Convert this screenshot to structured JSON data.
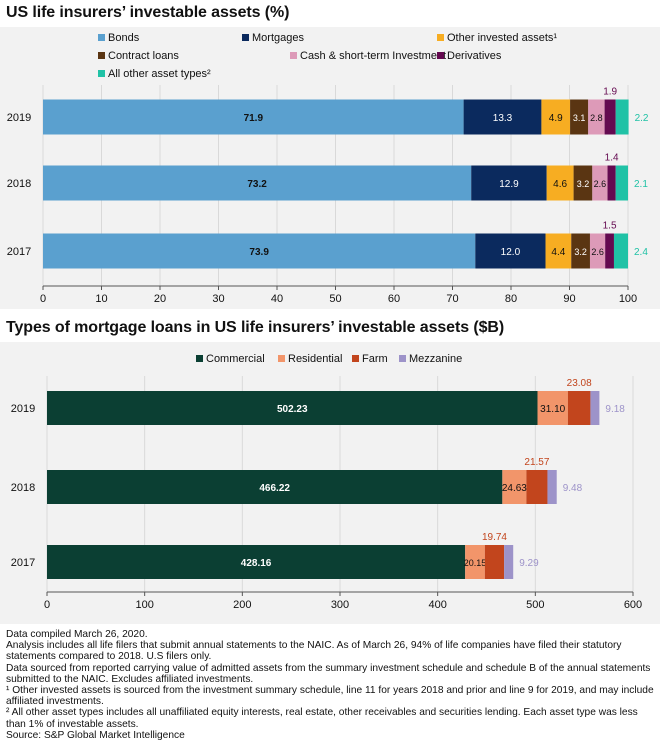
{
  "chart_data": [
    {
      "type": "bar",
      "orientation": "horizontal",
      "stacked": true,
      "title": "US life insurers’ investable assets (%)",
      "categories": [
        "2019",
        "2018",
        "2017"
      ],
      "series": [
        {
          "name": "Bonds",
          "legend": "Bonds",
          "color": "#5aa0cf",
          "values": [
            71.9,
            73.2,
            73.9
          ],
          "labels": [
            "71.9",
            "73.2",
            "73.9"
          ]
        },
        {
          "name": "Mortgages",
          "legend": "Mortgages",
          "color": "#0b2a5e",
          "values": [
            13.3,
            12.9,
            12.0
          ],
          "labels": [
            "13.3",
            "12.9",
            "12.0"
          ]
        },
        {
          "name": "Other invested assets",
          "legend": "Other invested assets¹",
          "color": "#f7ad22",
          "values": [
            4.9,
            4.6,
            4.4
          ],
          "labels": [
            "4.9",
            "4.6",
            "4.4"
          ]
        },
        {
          "name": "Contract loans",
          "legend": "Contract loans",
          "color": "#5a3512",
          "values": [
            3.1,
            3.2,
            3.2
          ],
          "labels": [
            "3.1",
            "3.2",
            "3.2"
          ]
        },
        {
          "name": "Cash & short-term Investment",
          "legend": "Cash & short-term Investment",
          "color": "#dd9ab8",
          "values": [
            2.8,
            2.6,
            2.6
          ],
          "labels": [
            "2.8",
            "2.6",
            "2.6"
          ]
        },
        {
          "name": "Derivatives",
          "legend": "Derivatives",
          "color": "#640a50",
          "values": [
            1.9,
            1.4,
            1.5
          ],
          "labels": [
            "1.9",
            "1.4",
            "1.5"
          ]
        },
        {
          "name": "All other asset types",
          "legend": "All other asset types²",
          "color": "#20c2a6",
          "values": [
            2.2,
            2.1,
            2.4
          ],
          "labels": [
            "2.2",
            "2.1",
            "2.4"
          ]
        }
      ],
      "xlim": [
        0,
        100
      ],
      "xticks": [
        "0",
        "10",
        "20",
        "30",
        "40",
        "50",
        "60",
        "70",
        "80",
        "90",
        "100"
      ]
    },
    {
      "type": "bar",
      "orientation": "horizontal",
      "stacked": true,
      "title": "Types of mortgage loans in US life insurers’ investable assets ($B)",
      "categories": [
        "2019",
        "2018",
        "2017"
      ],
      "series": [
        {
          "name": "Commercial",
          "legend": "Commercial",
          "color": "#0b3f33",
          "values": [
            502.23,
            466.22,
            428.16
          ],
          "labels": [
            "502.23",
            "466.22",
            "428.16"
          ]
        },
        {
          "name": "Residential",
          "legend": "Residential",
          "color": "#f2956a",
          "values": [
            31.1,
            24.63,
            20.15
          ],
          "labels": [
            "31.10",
            "24.63",
            "20.15"
          ]
        },
        {
          "name": "Farm",
          "legend": "Farm",
          "color": "#c2451d",
          "values": [
            23.08,
            21.57,
            19.74
          ],
          "labels": [
            "23.08",
            "21.57",
            "19.74"
          ]
        },
        {
          "name": "Mezzanine",
          "legend": "Mezzanine",
          "color": "#9d93c9",
          "values": [
            9.18,
            9.48,
            9.29
          ],
          "labels": [
            "9.18",
            "9.48",
            "9.29"
          ]
        }
      ],
      "xlim": [
        0,
        600
      ],
      "xticks": [
        "0",
        "100",
        "200",
        "300",
        "400",
        "500",
        "600"
      ]
    }
  ],
  "footnotes": [
    "Data compiled March 26, 2020.",
    "Analysis includes all life filers that submit annual statements to the NAIC. As of March 26, 94% of life companies have filed their statutory statements compared to 2018. U.S filers only.",
    "Data sourced from reported carrying value of admitted assets from the summary investment schedule and schedule B of the annual statements submitted to the NAIC. Excludes affiliated investments.",
    "¹ Other invested assets is sourced from the investment summary schedule, line 11 for years 2018 and prior and line 9 for 2019, and may include affiliated investments.",
    "² All other asset types includes all unaffiliated equity interests, real estate, other receivables and securities lending. Each asset type was less than 1% of investable assets.",
    "Source: S&P Global Market Intelligence"
  ]
}
